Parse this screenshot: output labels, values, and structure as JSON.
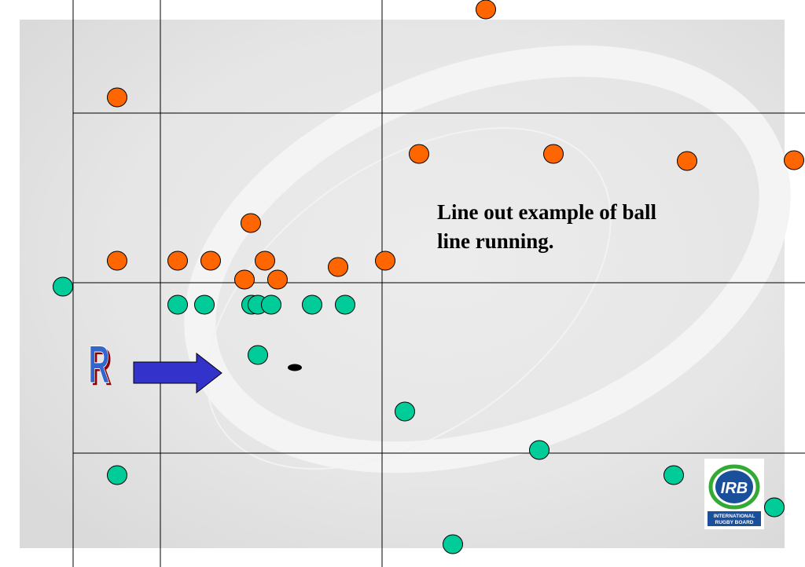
{
  "caption": {
    "lines": [
      "Line out example of ball",
      "line running."
    ]
  },
  "marker": {
    "letter": "R"
  },
  "logo": {
    "initials": "IRB",
    "line1": "INTERNATIONAL",
    "line2": "RUGBY BOARD"
  }
}
